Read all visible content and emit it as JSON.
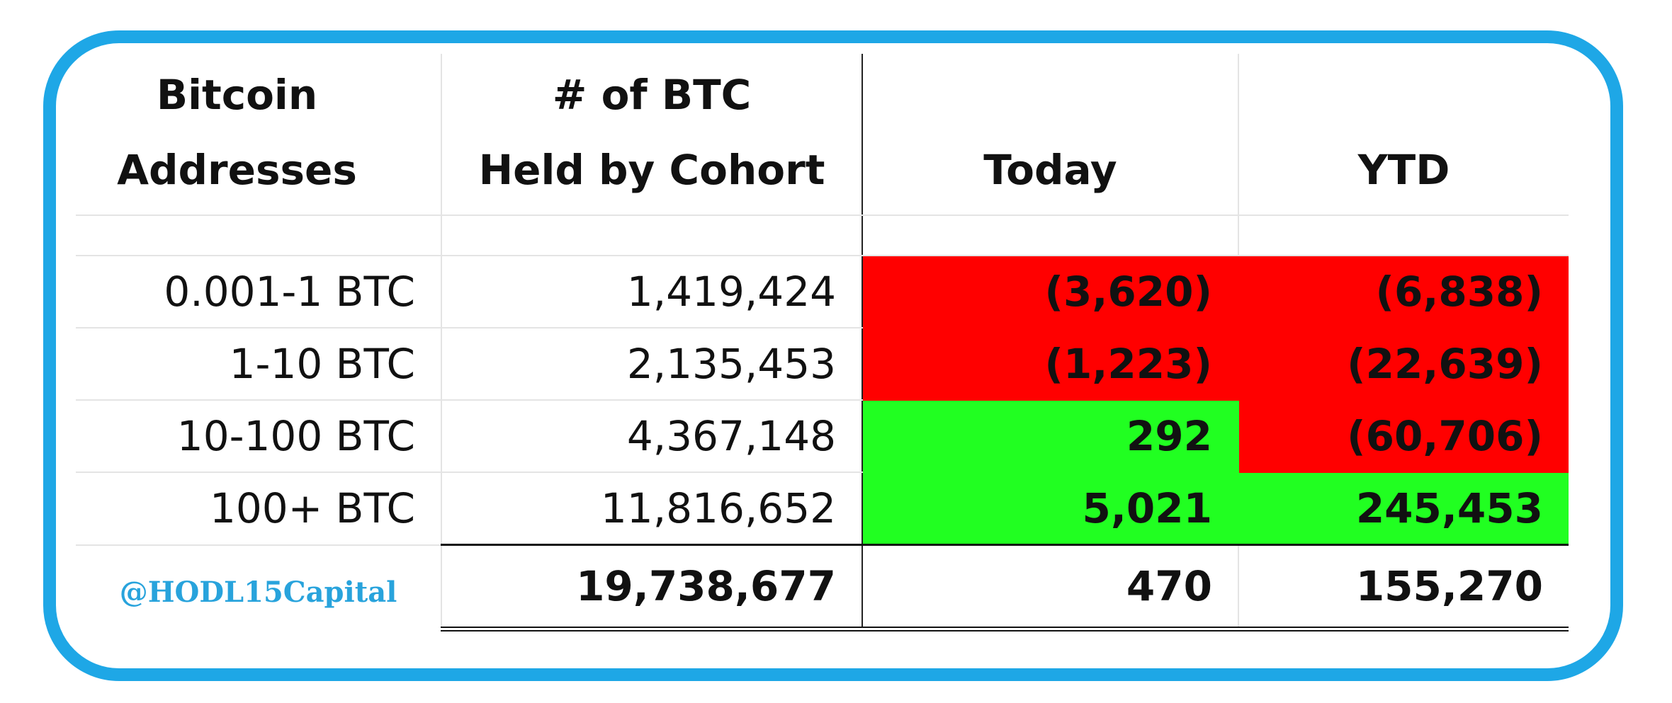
{
  "header": [
    [
      "Bitcoin",
      "Addresses"
    ],
    [
      "# of BTC",
      "Held by Cohort"
    ],
    [
      "Today"
    ],
    [
      "YTD"
    ]
  ],
  "rows": [
    [
      "0.001-1 BTC",
      "1,419,424",
      "(3,620)",
      "(6,838)"
    ],
    [
      "1-10 BTC",
      "2,135,453",
      "(1,223)",
      "(22,639)"
    ],
    [
      "10-100 BTC",
      "4,367,148",
      "292",
      "(60,706)"
    ],
    [
      "100+ BTC",
      "11,816,652",
      "5,021",
      "245,453"
    ]
  ],
  "total": [
    "@HODL15Capital",
    "19,738,677",
    "470",
    "155,270"
  ]
}
